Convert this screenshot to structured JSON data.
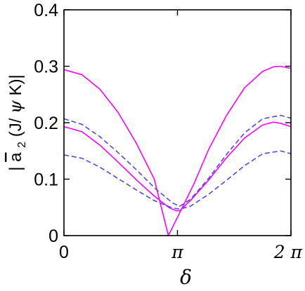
{
  "chart_data": {
    "type": "line",
    "xlabel": "δ",
    "ylabel": {
      "prefix": "|",
      "symbol": "a",
      "subscript": "2",
      "open": "(J/",
      "psi": "ψ",
      "close": " K)|"
    },
    "xlim": [
      0,
      6.283
    ],
    "ylim": [
      0,
      0.4
    ],
    "x_ticks": [
      {
        "value": 0,
        "label": "0"
      },
      {
        "value": 3.1416,
        "label": "π"
      },
      {
        "value": 6.2832,
        "label": "2 π"
      }
    ],
    "y_ticks": [
      {
        "value": 0,
        "label": "0"
      },
      {
        "value": 0.1,
        "label": "0.1"
      },
      {
        "value": 0.2,
        "label": "0.2"
      },
      {
        "value": 0.3,
        "label": "0.3"
      },
      {
        "value": 0.4,
        "label": "0.4"
      }
    ],
    "grid": false,
    "colors": {
      "solid": "#ff00ff",
      "dashed": "#5544ee"
    },
    "series": [
      {
        "style": "solid",
        "x": [
          0,
          0.5,
          1.0,
          1.5,
          2.0,
          2.5,
          2.89,
          3.2,
          3.6,
          4.0,
          4.5,
          5.0,
          5.5,
          5.8,
          6.0,
          6.283
        ],
        "y": [
          0.294,
          0.285,
          0.259,
          0.218,
          0.164,
          0.1,
          0.0,
          0.04,
          0.092,
          0.152,
          0.213,
          0.262,
          0.291,
          0.299,
          0.3,
          0.296
        ]
      },
      {
        "style": "solid",
        "x": [
          0,
          0.5,
          1.0,
          1.5,
          2.0,
          2.5,
          2.9,
          3.1,
          3.2,
          3.5,
          4.0,
          4.5,
          5.0,
          5.5,
          5.8,
          6.0,
          6.283
        ],
        "y": [
          0.193,
          0.184,
          0.16,
          0.13,
          0.099,
          0.07,
          0.05,
          0.044,
          0.044,
          0.062,
          0.098,
          0.138,
          0.173,
          0.196,
          0.201,
          0.199,
          0.193
        ]
      },
      {
        "style": "dashed",
        "x": [
          0,
          0.5,
          1.0,
          1.5,
          2.0,
          2.5,
          3.0,
          3.2,
          3.5,
          4.0,
          4.5,
          5.0,
          5.5,
          6.0,
          6.283
        ],
        "y": [
          0.207,
          0.197,
          0.175,
          0.147,
          0.117,
          0.085,
          0.058,
          0.052,
          0.064,
          0.101,
          0.144,
          0.182,
          0.207,
          0.213,
          0.208
        ]
      },
      {
        "style": "dashed",
        "x": [
          0,
          0.5,
          1.0,
          1.5,
          2.0,
          2.5,
          3.0,
          3.2,
          3.5,
          4.0,
          4.5,
          5.0,
          5.5,
          6.0,
          6.283
        ],
        "y": [
          0.143,
          0.137,
          0.121,
          0.101,
          0.081,
          0.062,
          0.049,
          0.047,
          0.052,
          0.073,
          0.098,
          0.124,
          0.145,
          0.15,
          0.145
        ]
      }
    ]
  }
}
